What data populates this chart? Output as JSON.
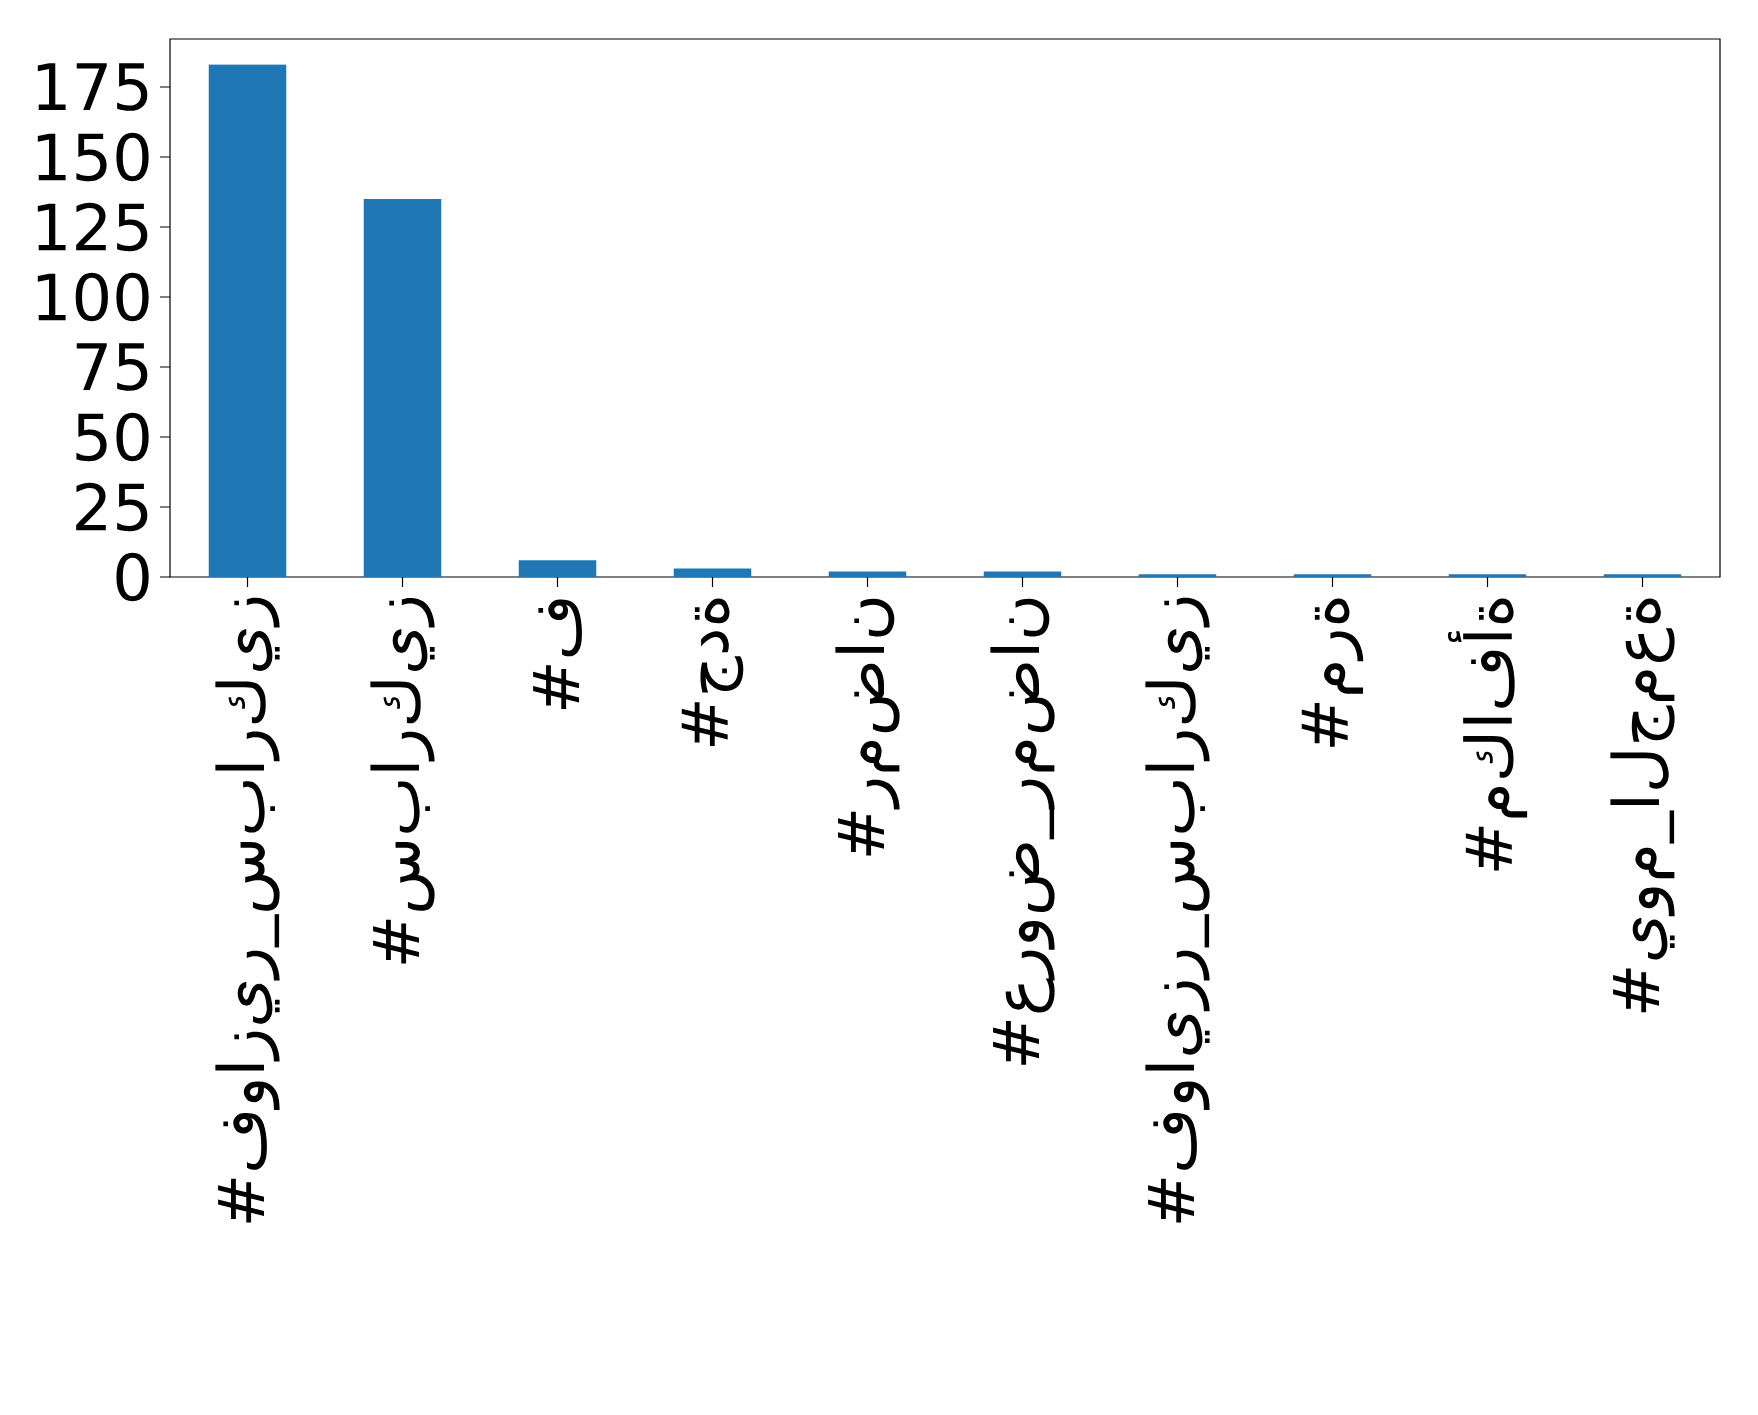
{
  "chart_data": {
    "type": "bar",
    "categories": [
      "#فوازير_سباركيز",
      "#سباركيز",
      "#ف",
      "#جدة",
      "#رمضان",
      "#عروض_رمضان",
      "#فوايزر_سباركيز",
      "#مرة",
      "#مكافأة",
      "#يوم_الجمعة"
    ],
    "values": [
      183,
      135,
      6,
      3,
      2,
      2,
      1,
      1,
      1,
      1
    ],
    "color": "#1f77b4",
    "ylim": [
      0,
      192.15
    ],
    "yticks": [
      0,
      25,
      50,
      75,
      100,
      125,
      150,
      175
    ]
  }
}
